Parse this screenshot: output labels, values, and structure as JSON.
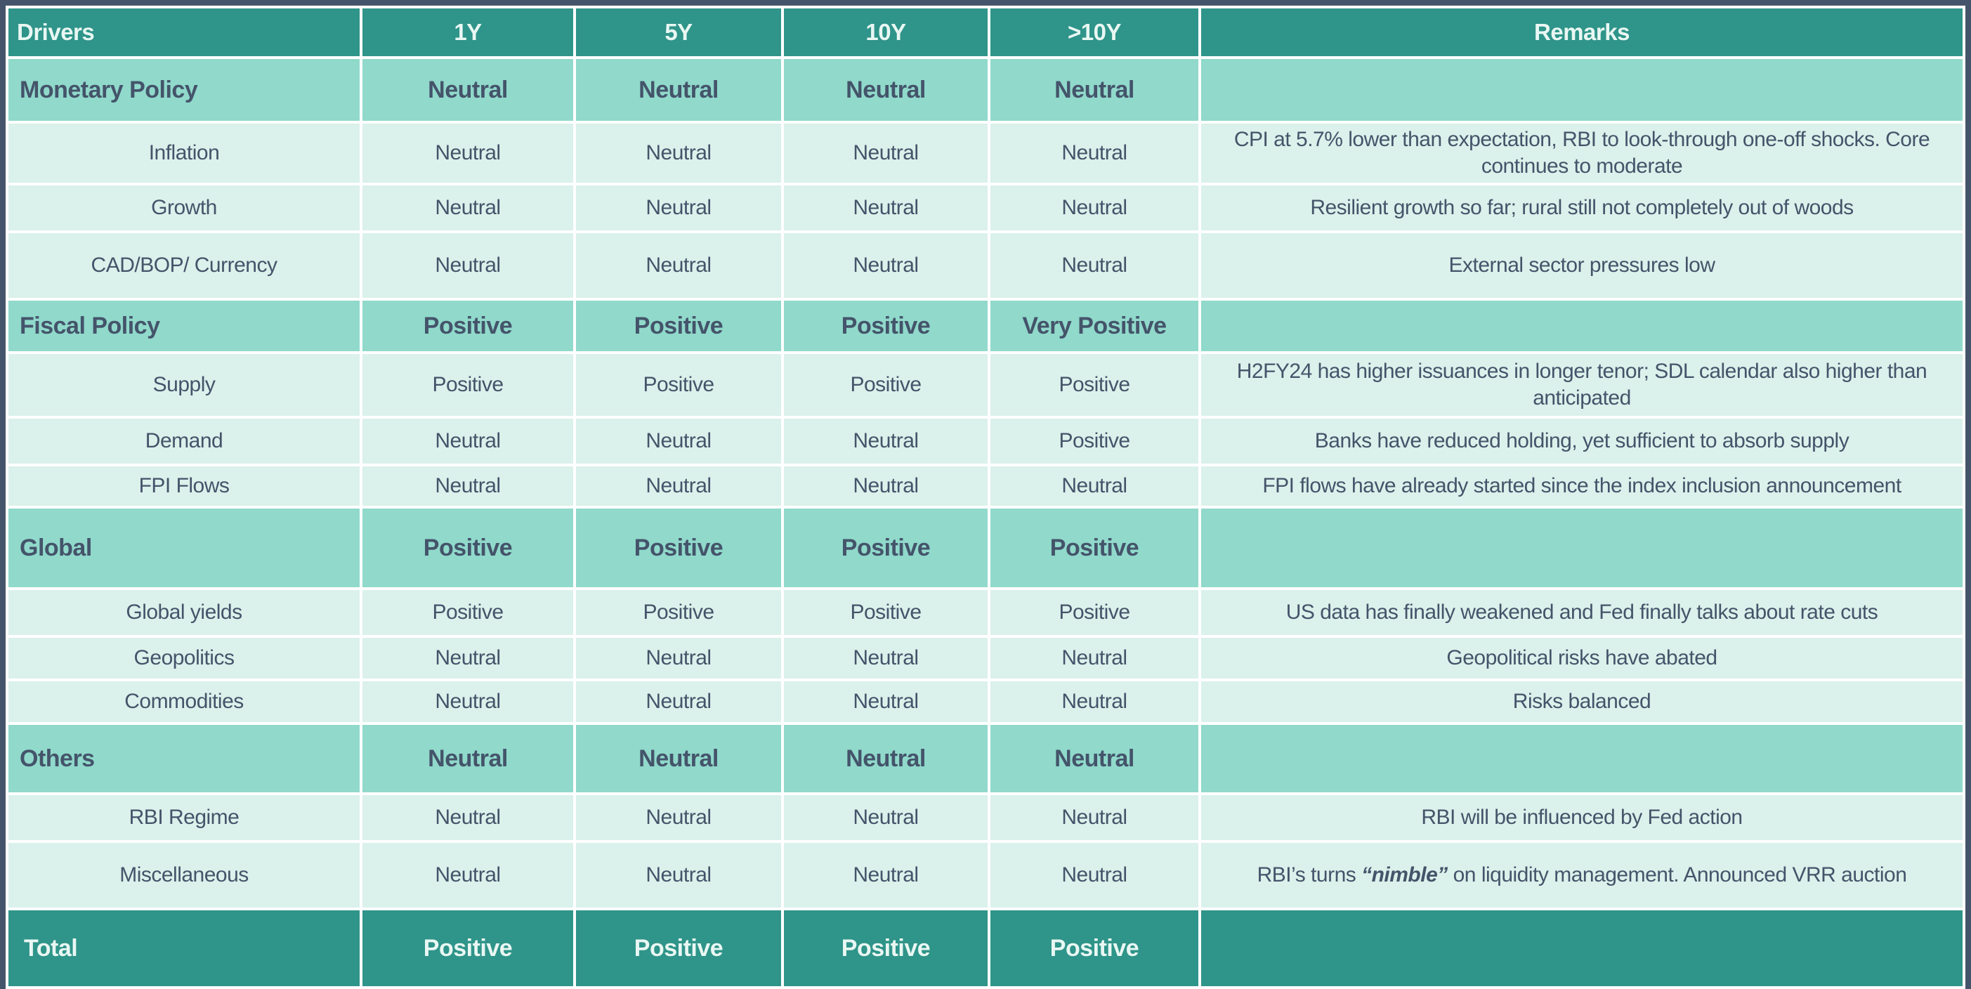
{
  "colors": {
    "header_bg": "#2F9489",
    "category_bg": "#90D9CB",
    "item_bg": "#DBF1EB",
    "total_bg": "#2F9489",
    "header_text": "#E9F7F3",
    "body_text": "#44546A",
    "grid_line": "#FFFFFF",
    "outer_border": "#44546A"
  },
  "columns": [
    "Drivers",
    "1Y",
    "5Y",
    "10Y",
    ">10Y",
    "Remarks"
  ],
  "rows": [
    {
      "type": "category",
      "label": "Monetary Policy",
      "values": [
        "Neutral",
        "Neutral",
        "Neutral",
        "Neutral"
      ],
      "remark": ""
    },
    {
      "type": "item",
      "label": "Inflation",
      "values": [
        "Neutral",
        "Neutral",
        "Neutral",
        "Neutral"
      ],
      "remark": "CPI at 5.7% lower than expectation, RBI to look-through one-off shocks. Core continues to moderate"
    },
    {
      "type": "item",
      "label": "Growth",
      "values": [
        "Neutral",
        "Neutral",
        "Neutral",
        "Neutral"
      ],
      "remark": "Resilient growth so far; rural still not completely out of woods"
    },
    {
      "type": "item",
      "label": "CAD/BOP/ Currency",
      "values": [
        "Neutral",
        "Neutral",
        "Neutral",
        "Neutral"
      ],
      "remark": "External sector pressures low"
    },
    {
      "type": "category",
      "label": "Fiscal Policy",
      "values": [
        "Positive",
        "Positive",
        "Positive",
        "Very Positive"
      ],
      "remark": ""
    },
    {
      "type": "item",
      "label": "Supply",
      "values": [
        "Positive",
        "Positive",
        "Positive",
        "Positive"
      ],
      "remark": "H2FY24 has higher issuances in longer tenor; SDL calendar also higher than anticipated"
    },
    {
      "type": "item",
      "label": "Demand",
      "values": [
        "Neutral",
        "Neutral",
        "Neutral",
        "Positive"
      ],
      "remark": "Banks have reduced holding, yet sufficient to absorb supply"
    },
    {
      "type": "item",
      "label": "FPI Flows",
      "values": [
        "Neutral",
        "Neutral",
        "Neutral",
        "Neutral"
      ],
      "remark": "FPI flows have already started since the index inclusion announcement"
    },
    {
      "type": "category",
      "label": "Global",
      "values": [
        "Positive",
        "Positive",
        "Positive",
        "Positive"
      ],
      "remark": ""
    },
    {
      "type": "item",
      "label": "Global yields",
      "values": [
        "Positive",
        "Positive",
        "Positive",
        "Positive"
      ],
      "remark": "US data has finally weakened and Fed finally talks about rate cuts"
    },
    {
      "type": "item",
      "label": "Geopolitics",
      "values": [
        "Neutral",
        "Neutral",
        "Neutral",
        "Neutral"
      ],
      "remark": "Geopolitical risks have abated"
    },
    {
      "type": "item",
      "label": "Commodities",
      "values": [
        "Neutral",
        "Neutral",
        "Neutral",
        "Neutral"
      ],
      "remark": "Risks balanced"
    },
    {
      "type": "category",
      "label": "Others",
      "values": [
        "Neutral",
        "Neutral",
        "Neutral",
        "Neutral"
      ],
      "remark": ""
    },
    {
      "type": "item",
      "label": "RBI Regime",
      "values": [
        "Neutral",
        "Neutral",
        "Neutral",
        "Neutral"
      ],
      "remark": "RBI will be influenced by Fed action"
    },
    {
      "type": "item",
      "label": "Miscellaneous",
      "values": [
        "Neutral",
        "Neutral",
        "Neutral",
        "Neutral"
      ],
      "remark_rich": [
        {
          "text": "RBI’s turns ",
          "emphasis": false
        },
        {
          "text": "“nimble”",
          "emphasis": true
        },
        {
          "text": " on liquidity management. Announced VRR auction",
          "emphasis": false
        }
      ]
    },
    {
      "type": "total",
      "label": "Total",
      "values": [
        "Positive",
        "Positive",
        "Positive",
        "Positive"
      ],
      "remark": ""
    }
  ]
}
